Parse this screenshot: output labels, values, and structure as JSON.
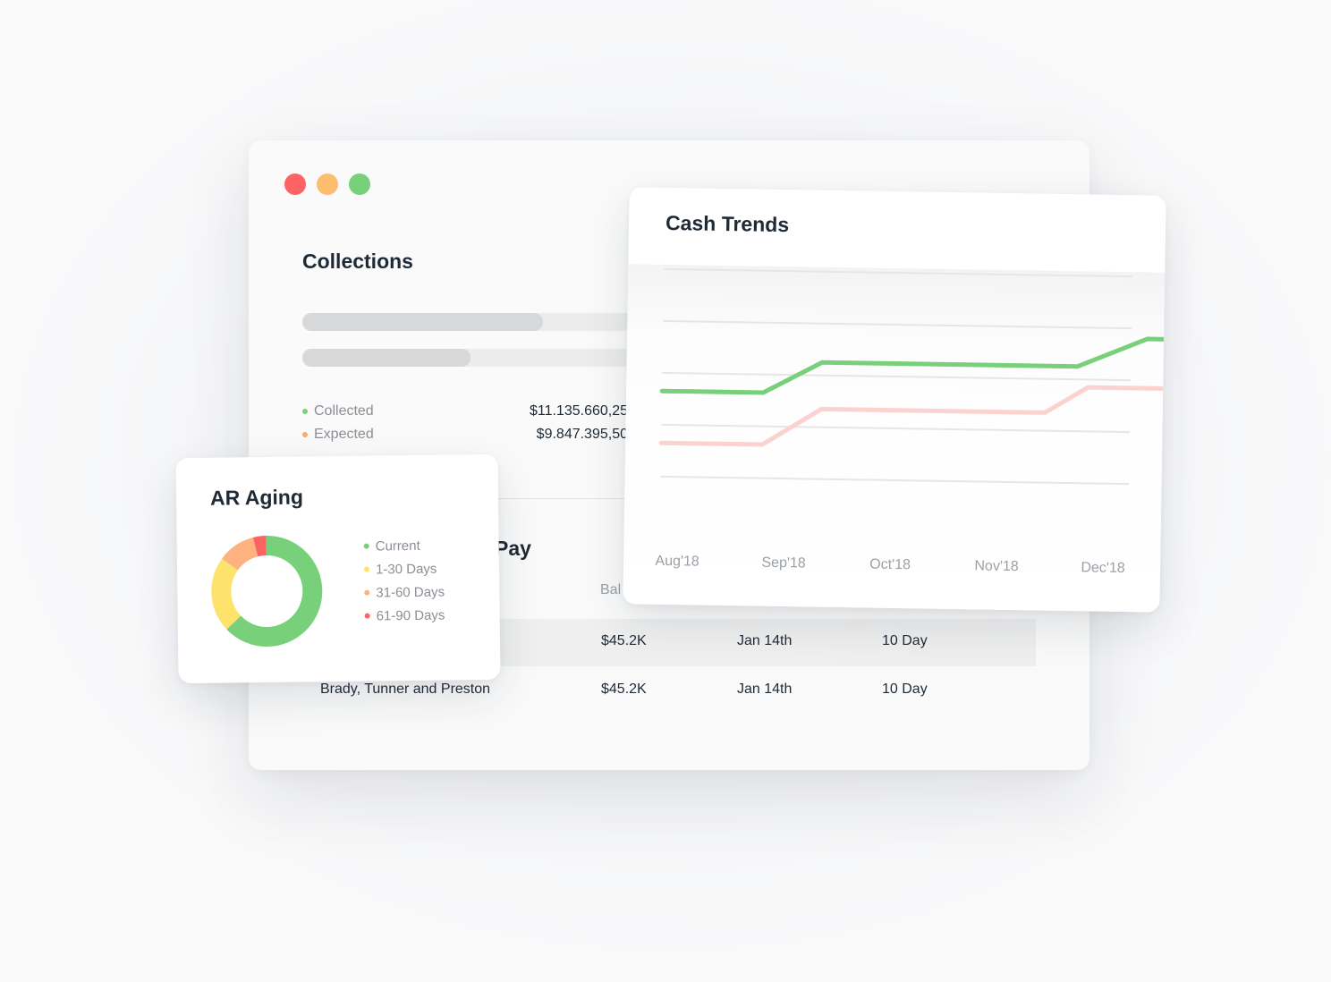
{
  "window": {
    "traffic_lights": [
      {
        "name": "close",
        "color": "#fc6363"
      },
      {
        "name": "minimize",
        "color": "#fdbd6f"
      },
      {
        "name": "maximize",
        "color": "#78d07a"
      }
    ]
  },
  "collections": {
    "title": "Collections",
    "progress": [
      {
        "name": "collected",
        "fraction": 0.48
      },
      {
        "name": "expected",
        "fraction": 0.335
      }
    ],
    "legend": [
      {
        "label": "Collected",
        "value": "$11.135.660,25",
        "color": "#78d07a"
      },
      {
        "label": "Expected",
        "value": "$9.847.395,50",
        "color": "#fdab6f"
      }
    ]
  },
  "pay_section": {
    "title_fragment": "Pay",
    "balance_header_fragment": "Bal",
    "rows": [
      {
        "name": "",
        "balance": "$45.2K",
        "date": "Jan 14th",
        "terms": "10 Day"
      },
      {
        "name": "Brady, Tunner and Preston",
        "balance": "$45.2K",
        "date": "Jan 14th",
        "terms": "10 Day"
      }
    ]
  },
  "ar_aging": {
    "title": "AR Aging",
    "legend": [
      {
        "label": "Current",
        "color": "#78d07a"
      },
      {
        "label": "1-30 Days",
        "color": "#fde36b"
      },
      {
        "label": "31-60 Days",
        "color": "#fdb27f"
      },
      {
        "label": "61-90 Days",
        "color": "#fc6363"
      }
    ]
  },
  "cash_trends": {
    "title": "Cash Trends"
  },
  "chart_data": [
    {
      "type": "pie",
      "donut": true,
      "title": "AR Aging",
      "categories": [
        "Current",
        "1-30 Days",
        "31-60 Days",
        "61-90 Days"
      ],
      "values": [
        63,
        22,
        11,
        4
      ],
      "colors": [
        "#78d07a",
        "#fde36b",
        "#fdb27f",
        "#fc6363"
      ]
    },
    {
      "type": "line",
      "title": "Cash Trends",
      "categories": [
        "Aug'18",
        "Sep'18",
        "Oct'18",
        "Nov'18",
        "Dec'18"
      ],
      "ylim": [
        0,
        5
      ],
      "grid": true,
      "series": [
        {
          "color": "#78d07a",
          "points": [
            [
              0,
              2.65
            ],
            [
              0.95,
              2.65
            ],
            [
              1.5,
              3.25
            ],
            [
              3.9,
              3.25
            ],
            [
              4.55,
              3.8
            ],
            [
              5.1,
              3.8
            ]
          ]
        },
        {
          "color": "#fbd2d0",
          "points": [
            [
              0,
              1.65
            ],
            [
              0.95,
              1.65
            ],
            [
              1.5,
              2.35
            ],
            [
              3.6,
              2.35
            ],
            [
              4.0,
              2.85
            ],
            [
              5.1,
              2.85
            ]
          ]
        }
      ]
    }
  ]
}
